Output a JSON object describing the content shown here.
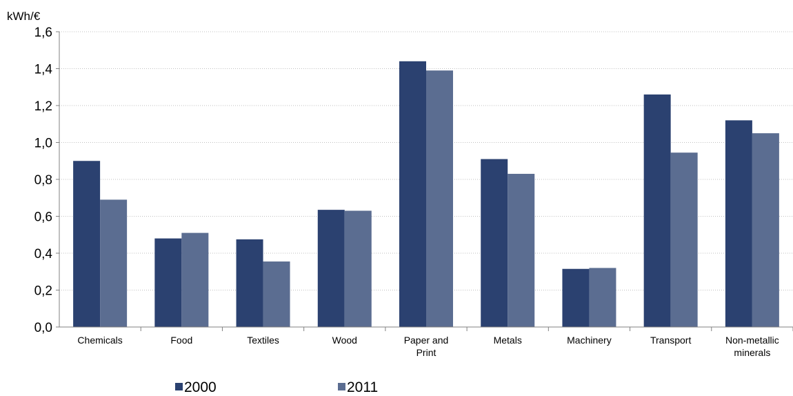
{
  "chart_data": {
    "type": "bar",
    "ylabel": "kWh/€",
    "categories": [
      [
        "Chemicals"
      ],
      [
        "Food"
      ],
      [
        "Textiles"
      ],
      [
        "Wood"
      ],
      [
        "Paper and",
        "Print"
      ],
      [
        "Metals"
      ],
      [
        "Machinery"
      ],
      [
        "Transport"
      ],
      [
        "Non-metallic",
        "minerals"
      ]
    ],
    "series": [
      {
        "name": "2000",
        "color": "#2b4170",
        "values": [
          0.9,
          0.48,
          0.475,
          0.635,
          1.44,
          0.91,
          0.315,
          1.26,
          1.12
        ]
      },
      {
        "name": "2011",
        "color": "#5b6d91",
        "values": [
          0.69,
          0.51,
          0.355,
          0.63,
          1.39,
          0.83,
          0.32,
          0.945,
          1.05
        ]
      }
    ],
    "ylim": [
      0,
      1.6
    ],
    "yticks": [
      "0,0",
      "0,2",
      "0,4",
      "0,6",
      "0,8",
      "1,0",
      "1,2",
      "1,4",
      "1,6"
    ],
    "grid": true,
    "legend_position": "bottom"
  }
}
